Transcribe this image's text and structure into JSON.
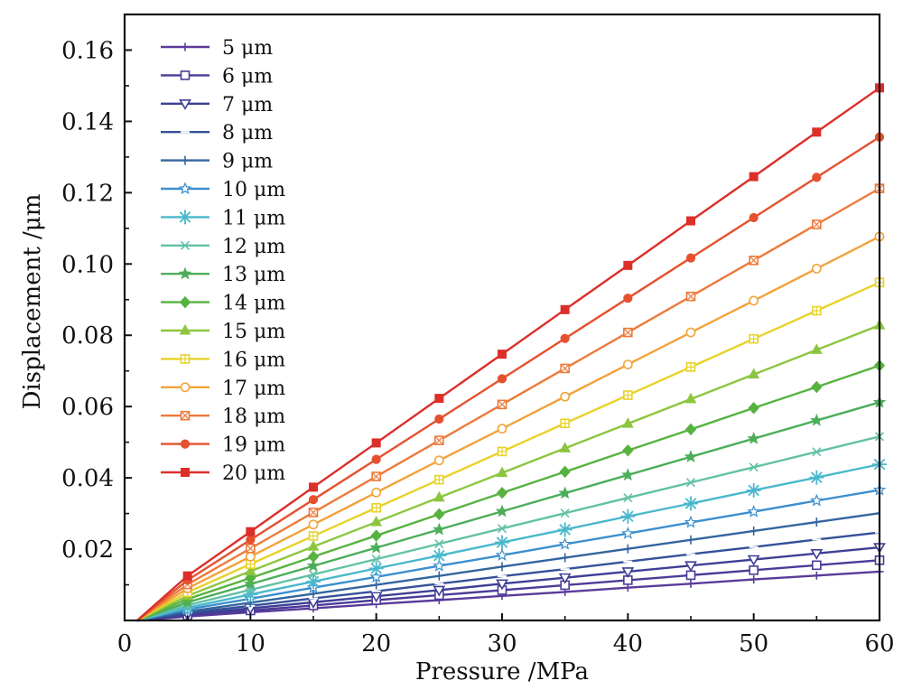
{
  "chart_data": {
    "type": "line",
    "title": "",
    "xlabel": "Pressure /MPa",
    "ylabel": "Displacement /μm",
    "xlim": [
      0,
      60
    ],
    "ylim": [
      0,
      0.17
    ],
    "xticks": [
      0,
      10,
      20,
      30,
      40,
      50,
      60
    ],
    "yticks": [
      0.02,
      0.04,
      0.06,
      0.08,
      0.1,
      0.12,
      0.14,
      0.16
    ],
    "xtick_labels": [
      "0",
      "10",
      "20",
      "30",
      "40",
      "50",
      "60"
    ],
    "ytick_labels": [
      "0.02",
      "0.04",
      "0.06",
      "0.08",
      "0.10",
      "0.12",
      "0.14",
      "0.16"
    ],
    "grid": false,
    "legend": "top-left",
    "x": [
      1,
      5,
      10,
      15,
      20,
      25,
      30,
      35,
      40,
      45,
      50,
      55,
      60
    ],
    "series": [
      {
        "name": "5 μm",
        "color": "#5b3a9a",
        "marker": "plus",
        "values": [
          0,
          0.0011,
          0.0023,
          0.0034,
          0.0046,
          0.0057,
          0.0069,
          0.008,
          0.0092,
          0.0103,
          0.0115,
          0.0126,
          0.0137
        ]
      },
      {
        "name": "6 μm",
        "color": "#4b3b98",
        "marker": "square",
        "values": [
          0,
          0.0014,
          0.0028,
          0.0042,
          0.0057,
          0.0071,
          0.0085,
          0.0099,
          0.0113,
          0.0127,
          0.0141,
          0.0155,
          0.0169
        ]
      },
      {
        "name": "7 μm",
        "color": "#3e3f95",
        "marker": "triangle-down",
        "values": [
          0,
          0.0017,
          0.0034,
          0.0051,
          0.0068,
          0.0085,
          0.0103,
          0.012,
          0.0137,
          0.0154,
          0.0171,
          0.0188,
          0.0205
        ]
      },
      {
        "name": "8 μm",
        "color": "#34509a",
        "marker": "dash",
        "values": [
          0,
          0.0021,
          0.0041,
          0.0062,
          0.0082,
          0.0103,
          0.0124,
          0.0144,
          0.0165,
          0.0186,
          0.0206,
          0.0227,
          0.0247
        ]
      },
      {
        "name": "9 μm",
        "color": "#33659f",
        "marker": "vbar",
        "values": [
          0,
          0.0025,
          0.005,
          0.0075,
          0.01,
          0.0125,
          0.0151,
          0.0176,
          0.0201,
          0.0226,
          0.0251,
          0.0276,
          0.0301
        ]
      },
      {
        "name": "10 μm",
        "color": "#3b8fcf",
        "marker": "star-open",
        "values": [
          0,
          0.0031,
          0.0061,
          0.0092,
          0.0122,
          0.0153,
          0.0183,
          0.0214,
          0.0244,
          0.0275,
          0.0305,
          0.0336,
          0.0366
        ]
      },
      {
        "name": "11 μm",
        "color": "#4ab8cc",
        "marker": "asterisk",
        "values": [
          0,
          0.0036,
          0.0073,
          0.0109,
          0.0146,
          0.0182,
          0.0219,
          0.0255,
          0.0292,
          0.0328,
          0.0365,
          0.0401,
          0.0438
        ]
      },
      {
        "name": "12 μm",
        "color": "#63c1a6",
        "marker": "x",
        "values": [
          0,
          0.0043,
          0.0086,
          0.0129,
          0.0172,
          0.0215,
          0.0258,
          0.0301,
          0.0344,
          0.0387,
          0.043,
          0.0473,
          0.0516
        ]
      },
      {
        "name": "13 μm",
        "color": "#4cae5a",
        "marker": "star",
        "values": [
          0,
          0.0051,
          0.0102,
          0.0153,
          0.0204,
          0.0255,
          0.0306,
          0.0357,
          0.0408,
          0.0459,
          0.051,
          0.0561,
          0.0612
        ]
      },
      {
        "name": "14 μm",
        "color": "#57b240",
        "marker": "diamond",
        "values": [
          0,
          0.006,
          0.0119,
          0.0179,
          0.0238,
          0.0298,
          0.0358,
          0.0417,
          0.0477,
          0.0536,
          0.0596,
          0.0655,
          0.0715
        ]
      },
      {
        "name": "15 μm",
        "color": "#8cc63f",
        "marker": "triangle",
        "values": [
          0,
          0.0069,
          0.0138,
          0.0207,
          0.0276,
          0.0345,
          0.0414,
          0.0483,
          0.0552,
          0.0621,
          0.069,
          0.0759,
          0.0828
        ]
      },
      {
        "name": "16 μm",
        "color": "#e8d229",
        "marker": "square-cross",
        "values": [
          0,
          0.0079,
          0.0158,
          0.0237,
          0.0316,
          0.0395,
          0.0474,
          0.0553,
          0.0632,
          0.0711,
          0.079,
          0.0869,
          0.0948
        ]
      },
      {
        "name": "17 μm",
        "color": "#f2a33a",
        "marker": "circle-open",
        "values": [
          0,
          0.009,
          0.0179,
          0.0269,
          0.0359,
          0.0449,
          0.0538,
          0.0628,
          0.0718,
          0.0808,
          0.0897,
          0.0987,
          0.1077
        ]
      },
      {
        "name": "18 μm",
        "color": "#ee7a3a",
        "marker": "square-x",
        "values": [
          0,
          0.0101,
          0.0202,
          0.0303,
          0.0404,
          0.0505,
          0.0606,
          0.0707,
          0.0808,
          0.0909,
          0.101,
          0.1111,
          0.1212
        ]
      },
      {
        "name": "19 μm",
        "color": "#e5512f",
        "marker": "circle",
        "values": [
          0,
          0.0113,
          0.0226,
          0.0339,
          0.0452,
          0.0565,
          0.0678,
          0.0791,
          0.0904,
          0.1017,
          0.113,
          0.1243,
          0.1356
        ]
      },
      {
        "name": "20 μm",
        "color": "#dc2f2a",
        "marker": "square-filled",
        "values": [
          0,
          0.0125,
          0.0249,
          0.0374,
          0.0498,
          0.0623,
          0.0747,
          0.0872,
          0.0996,
          0.1121,
          0.1245,
          0.137,
          0.1494
        ]
      }
    ]
  }
}
